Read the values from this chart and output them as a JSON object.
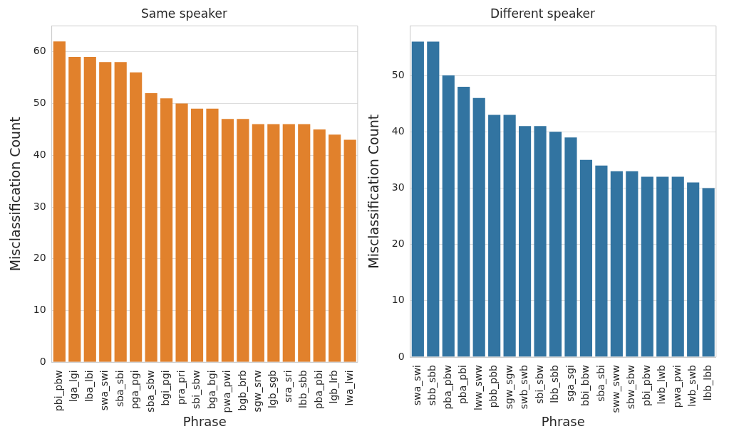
{
  "chart_data": [
    {
      "type": "bar",
      "title": "Same speaker",
      "xlabel": "Phrase",
      "ylabel": "Misclassification Count",
      "categories": [
        "pbi_pbw",
        "lga_lgi",
        "lba_lbi",
        "swa_swi",
        "sba_sbi",
        "pga_pgi",
        "sba_sbw",
        "bgi_pgi",
        "pra_pri",
        "sbi_sbw",
        "bga_bgi",
        "pwa_pwi",
        "bgb_brb",
        "sgw_srw",
        "lgb_sgb",
        "sra_sri",
        "lbb_sbb",
        "pba_pbi",
        "lgb_lrb",
        "lwa_lwi"
      ],
      "values": [
        62,
        59,
        59,
        58,
        58,
        56,
        52,
        51,
        50,
        49,
        49,
        47,
        47,
        46,
        46,
        46,
        46,
        45,
        44,
        43
      ],
      "color": "#e1812c",
      "ylim": [
        0,
        65
      ],
      "yticks": [
        0,
        10,
        20,
        30,
        40,
        50,
        60
      ],
      "grid": "y",
      "legend": false
    },
    {
      "type": "bar",
      "title": "Different speaker",
      "xlabel": "Phrase",
      "ylabel": "Misclassification Count",
      "categories": [
        "swa_swi",
        "sbb_sbb",
        "pba_pbw",
        "pba_pbi",
        "lww_sww",
        "pbb_pbb",
        "sgw_sgw",
        "swb_swb",
        "sbi_sbw",
        "lbb_sbb",
        "sga_sgi",
        "bbi_bbw",
        "sba_sbi",
        "sww_sww",
        "sbw_sbw",
        "pbi_pbw",
        "lwb_lwb",
        "pwa_pwi",
        "lwb_swb",
        "lbb_lbb"
      ],
      "values": [
        56,
        56,
        50,
        48,
        46,
        43,
        43,
        41,
        41,
        40,
        39,
        35,
        34,
        33,
        33,
        32,
        32,
        32,
        31,
        30
      ],
      "color": "#3274a1",
      "ylim": [
        0,
        58.8
      ],
      "yticks": [
        0,
        10,
        20,
        30,
        40,
        50
      ],
      "grid": "y",
      "legend": false
    }
  ]
}
